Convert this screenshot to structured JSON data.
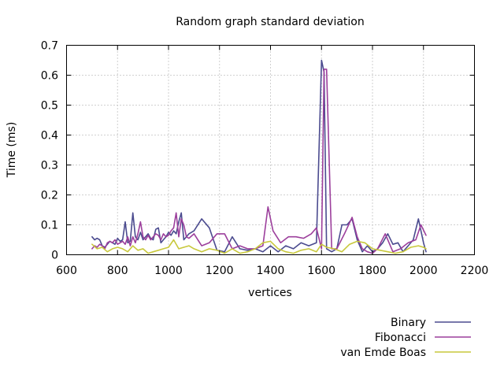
{
  "chart_data": {
    "type": "line",
    "title": "Random graph standard deviation",
    "xlabel": "vertices",
    "ylabel": "Time (ms)",
    "xlim": [
      600,
      2200
    ],
    "ylim": [
      0,
      0.7
    ],
    "x_ticks": [
      600,
      800,
      1000,
      1200,
      1400,
      1600,
      1800,
      2000,
      2200
    ],
    "y_ticks": [
      0,
      0.1,
      0.2,
      0.3,
      0.4,
      0.5,
      0.6,
      0.7
    ],
    "x_tick_labels": [
      "600",
      "800",
      "1000",
      "1200",
      "1400",
      "1600",
      "1800",
      "2000",
      "2200"
    ],
    "y_tick_labels": [
      "0",
      "0.1",
      "0.2",
      "0.3",
      "0.4",
      "0.5",
      "0.6",
      "0.7"
    ],
    "grid": true,
    "legend_position": "bottom-right",
    "series": [
      {
        "name": "Binary",
        "color": "#4b4b8f",
        "x": [
          700,
          710,
          720,
          730,
          740,
          750,
          760,
          770,
          780,
          790,
          800,
          810,
          820,
          830,
          840,
          850,
          860,
          870,
          880,
          890,
          900,
          910,
          920,
          930,
          940,
          950,
          960,
          970,
          980,
          990,
          1000,
          1010,
          1020,
          1030,
          1040,
          1050,
          1060,
          1070,
          1080,
          1100,
          1130,
          1160,
          1190,
          1220,
          1250,
          1280,
          1310,
          1340,
          1370,
          1400,
          1430,
          1460,
          1490,
          1520,
          1550,
          1580,
          1600,
          1610,
          1620,
          1640,
          1660,
          1680,
          1700,
          1720,
          1740,
          1760,
          1780,
          1800,
          1820,
          1840,
          1860,
          1880,
          1900,
          1920,
          1940,
          1960,
          1980,
          2000,
          2010
        ],
        "y": [
          0.06,
          0.05,
          0.055,
          0.05,
          0.03,
          0.025,
          0.035,
          0.045,
          0.04,
          0.035,
          0.055,
          0.045,
          0.05,
          0.11,
          0.04,
          0.045,
          0.14,
          0.06,
          0.05,
          0.075,
          0.05,
          0.06,
          0.07,
          0.055,
          0.05,
          0.085,
          0.09,
          0.04,
          0.05,
          0.06,
          0.075,
          0.065,
          0.08,
          0.07,
          0.11,
          0.14,
          0.05,
          0.06,
          0.07,
          0.08,
          0.12,
          0.09,
          0.015,
          0.01,
          0.06,
          0.02,
          0.015,
          0.02,
          0.01,
          0.03,
          0.01,
          0.03,
          0.02,
          0.04,
          0.03,
          0.04,
          0.65,
          0.61,
          0.02,
          0.01,
          0.02,
          0.1,
          0.1,
          0.12,
          0.05,
          0.01,
          0.03,
          0.01,
          0.02,
          0.04,
          0.07,
          0.035,
          0.04,
          0.01,
          0.03,
          0.05,
          0.12,
          0.04,
          0.01
        ]
      },
      {
        "name": "Fibonacci",
        "color": "#9c3f9c",
        "x": [
          700,
          710,
          720,
          730,
          740,
          750,
          760,
          770,
          780,
          790,
          800,
          810,
          820,
          830,
          840,
          850,
          860,
          870,
          880,
          890,
          900,
          910,
          920,
          930,
          940,
          950,
          960,
          970,
          980,
          990,
          1000,
          1010,
          1020,
          1030,
          1040,
          1050,
          1060,
          1070,
          1080,
          1100,
          1130,
          1160,
          1190,
          1220,
          1250,
          1280,
          1310,
          1340,
          1370,
          1390,
          1410,
          1440,
          1470,
          1500,
          1530,
          1560,
          1580,
          1600,
          1610,
          1620,
          1640,
          1660,
          1690,
          1720,
          1740,
          1760,
          1780,
          1800,
          1820,
          1850,
          1880,
          1910,
          1940,
          1970,
          1990,
          2010
        ],
        "y": [
          0.02,
          0.03,
          0.025,
          0.035,
          0.03,
          0.02,
          0.04,
          0.045,
          0.04,
          0.05,
          0.035,
          0.04,
          0.045,
          0.035,
          0.06,
          0.03,
          0.06,
          0.04,
          0.07,
          0.11,
          0.06,
          0.05,
          0.065,
          0.05,
          0.06,
          0.07,
          0.065,
          0.05,
          0.07,
          0.06,
          0.065,
          0.08,
          0.09,
          0.14,
          0.06,
          0.12,
          0.1,
          0.06,
          0.055,
          0.07,
          0.03,
          0.04,
          0.07,
          0.07,
          0.02,
          0.03,
          0.02,
          0.02,
          0.03,
          0.16,
          0.08,
          0.04,
          0.06,
          0.06,
          0.055,
          0.07,
          0.09,
          0.02,
          0.62,
          0.62,
          0.02,
          0.02,
          0.07,
          0.125,
          0.06,
          0.02,
          0.01,
          0.005,
          0.02,
          0.07,
          0.01,
          0.02,
          0.04,
          0.05,
          0.1,
          0.065
        ]
      },
      {
        "name": "van Emde Boas",
        "color": "#c8c83c",
        "x": [
          700,
          720,
          740,
          760,
          780,
          800,
          820,
          840,
          860,
          880,
          900,
          920,
          940,
          960,
          980,
          1000,
          1020,
          1040,
          1060,
          1080,
          1100,
          1130,
          1160,
          1190,
          1220,
          1250,
          1280,
          1310,
          1340,
          1370,
          1400,
          1430,
          1460,
          1490,
          1520,
          1550,
          1580,
          1600,
          1620,
          1650,
          1680,
          1710,
          1740,
          1770,
          1800,
          1830,
          1860,
          1890,
          1920,
          1950,
          1980,
          2000,
          2010
        ],
        "y": [
          0.035,
          0.02,
          0.025,
          0.01,
          0.02,
          0.025,
          0.02,
          0.01,
          0.03,
          0.015,
          0.02,
          0.005,
          0.01,
          0.015,
          0.02,
          0.025,
          0.05,
          0.02,
          0.025,
          0.03,
          0.02,
          0.01,
          0.02,
          0.015,
          0.005,
          0.02,
          0.005,
          0.01,
          0.02,
          0.04,
          0.045,
          0.02,
          0.01,
          0.005,
          0.015,
          0.02,
          0.01,
          0.035,
          0.025,
          0.02,
          0.01,
          0.035,
          0.045,
          0.04,
          0.02,
          0.015,
          0.01,
          0.005,
          0.01,
          0.025,
          0.03,
          0.025,
          0.02
        ]
      }
    ]
  }
}
